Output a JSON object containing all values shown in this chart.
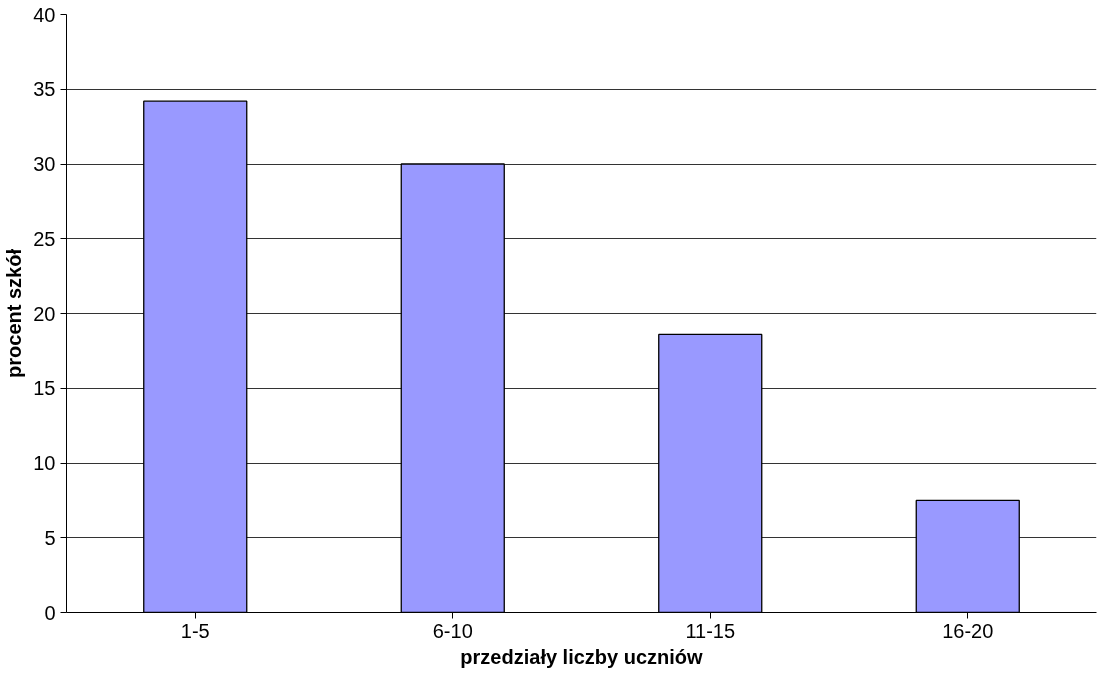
{
  "chart_data": {
    "type": "bar",
    "xlabel": "przedziały liczby uczniów",
    "ylabel": "procent szkół",
    "categories": [
      "1-5",
      "6-10",
      "11-15",
      "16-20"
    ],
    "values": [
      34.2,
      30.0,
      18.6,
      7.5
    ],
    "color": "#9999ff",
    "ylim": [
      0,
      40
    ],
    "yticks": [
      0,
      5,
      10,
      15,
      20,
      25,
      30,
      35,
      40
    ],
    "grid": "y"
  }
}
